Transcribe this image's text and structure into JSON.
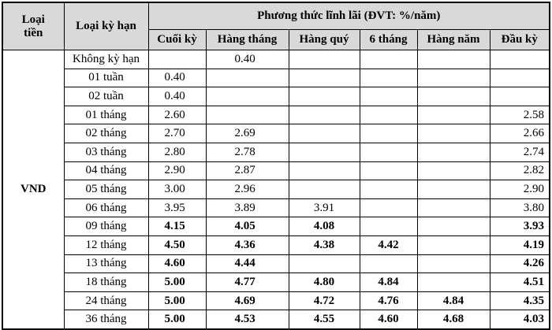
{
  "header": {
    "currency": "Loại tiền",
    "term": "Loại kỳ hạn",
    "method": "Phương thức lĩnh lãi (ĐVT: %/năm)",
    "columns": [
      "Cuối kỳ",
      "Hàng tháng",
      "Hàng quý",
      "6 tháng",
      "Hàng năm",
      "Đầu kỳ"
    ]
  },
  "currency": "VND",
  "rows": [
    {
      "term": "Không kỳ hạn",
      "values": [
        null,
        "0.40",
        null,
        null,
        null,
        null
      ],
      "bold": false
    },
    {
      "term": "01 tuần",
      "values": [
        "0.40",
        null,
        null,
        null,
        null,
        null
      ],
      "bold": false
    },
    {
      "term": "02 tuần",
      "values": [
        "0.40",
        null,
        null,
        null,
        null,
        null
      ],
      "bold": false
    },
    {
      "term": "01 tháng",
      "values": [
        "2.60",
        null,
        null,
        null,
        null,
        "2.58"
      ],
      "bold": false
    },
    {
      "term": "02 tháng",
      "values": [
        "2.70",
        "2.69",
        null,
        null,
        null,
        "2.66"
      ],
      "bold": false
    },
    {
      "term": "03 tháng",
      "values": [
        "2.80",
        "2.78",
        null,
        null,
        null,
        "2.74"
      ],
      "bold": false
    },
    {
      "term": "04 tháng",
      "values": [
        "2.90",
        "2.87",
        null,
        null,
        null,
        "2.82"
      ],
      "bold": false
    },
    {
      "term": "05 tháng",
      "values": [
        "3.00",
        "2.96",
        null,
        null,
        null,
        "2.90"
      ],
      "bold": false
    },
    {
      "term": "06 tháng",
      "values": [
        "3.95",
        "3.89",
        "3.91",
        null,
        null,
        "3.80"
      ],
      "bold": false
    },
    {
      "term": "09 tháng",
      "values": [
        "4.15",
        "4.05",
        "4.08",
        null,
        null,
        "3.93"
      ],
      "bold": true
    },
    {
      "term": "12 tháng",
      "values": [
        "4.50",
        "4.36",
        "4.38",
        "4.42",
        null,
        "4.19"
      ],
      "bold": true
    },
    {
      "term": "13 tháng",
      "values": [
        "4.60",
        "4.44",
        null,
        null,
        null,
        "4.26"
      ],
      "bold": true
    },
    {
      "term": "18 tháng",
      "values": [
        "5.00",
        "4.77",
        "4.80",
        "4.84",
        null,
        "4.51"
      ],
      "bold": true
    },
    {
      "term": "24 tháng",
      "values": [
        "5.00",
        "4.69",
        "4.72",
        "4.76",
        "4.84",
        "4.35"
      ],
      "bold": true
    },
    {
      "term": "36 tháng",
      "values": [
        "5.00",
        "4.53",
        "4.55",
        "4.60",
        "4.68",
        "4.03"
      ],
      "bold": true
    }
  ]
}
